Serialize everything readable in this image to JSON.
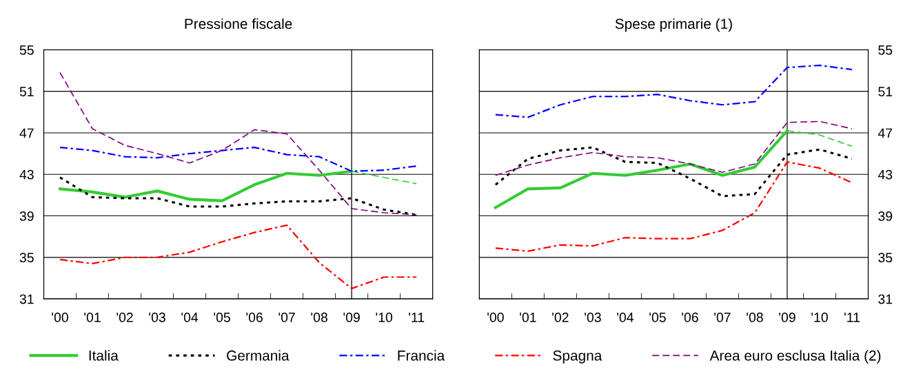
{
  "chart_data": [
    {
      "type": "line",
      "title": "Pressione fiscale",
      "categories": [
        "'00",
        "'01",
        "'02",
        "'03",
        "'04",
        "'05",
        "'06",
        "'07",
        "'08",
        "'09",
        "'10",
        "'11"
      ],
      "ylim": [
        31,
        55
      ],
      "yticks": [
        31,
        35,
        39,
        43,
        47,
        51,
        55
      ],
      "grid": "y",
      "legend": "bottom",
      "ref_lines": [
        {
          "axis": "x",
          "value": "'09",
          "color": "#000000"
        }
      ],
      "series": [
        {
          "name": "Italia",
          "color": "#33cc33",
          "line_style": "solid",
          "values": [
            41.6,
            41.3,
            40.8,
            41.4,
            40.6,
            40.45,
            42.0,
            43.1,
            42.9,
            43.3,
            null,
            null
          ]
        },
        {
          "color": "#33cc33",
          "line_style": "dashed",
          "values": [
            null,
            null,
            null,
            null,
            null,
            null,
            null,
            null,
            null,
            43.3,
            42.7,
            42.1
          ]
        },
        {
          "name": "Germania",
          "color": "#000000",
          "line_style": "dotted",
          "values": [
            42.7,
            40.8,
            40.7,
            40.7,
            39.9,
            39.9,
            40.2,
            40.4,
            40.4,
            40.7,
            39.6,
            39.1
          ]
        },
        {
          "name": "Francia",
          "color": "#0000ff",
          "line_style": "dashdot",
          "values": [
            45.6,
            45.3,
            44.7,
            44.6,
            45.0,
            45.3,
            45.6,
            44.9,
            44.7,
            43.3,
            43.4,
            43.8
          ]
        },
        {
          "name": "Spagna",
          "color": "#ff0000",
          "line_style": "dashdot",
          "values": [
            34.8,
            34.4,
            35.0,
            35.0,
            35.5,
            36.5,
            37.4,
            38.1,
            34.5,
            32.0,
            33.1,
            33.1
          ]
        },
        {
          "name": "Area euro esclusa Italia (2)",
          "color": "#800080",
          "line_style": "dashed",
          "values": [
            52.8,
            47.4,
            45.8,
            45.0,
            44.1,
            45.3,
            47.3,
            46.9,
            43.4,
            39.7,
            39.3,
            39.1
          ]
        }
      ]
    },
    {
      "type": "line",
      "title": "Spese primarie (1)",
      "categories": [
        "'00",
        "'01",
        "'02",
        "'03",
        "'04",
        "'05",
        "'06",
        "'07",
        "'08",
        "'09",
        "'10",
        "'11"
      ],
      "ylim": [
        31,
        55
      ],
      "yticks": [
        31,
        35,
        39,
        43,
        47,
        51,
        55
      ],
      "grid": "y",
      "legend": "bottom",
      "ref_lines": [
        {
          "axis": "x",
          "value": "'09",
          "color": "#000000"
        }
      ],
      "series": [
        {
          "name": "Italia",
          "color": "#33cc33",
          "line_style": "solid",
          "values": [
            39.8,
            41.6,
            41.7,
            43.1,
            42.9,
            43.4,
            44.0,
            42.9,
            43.7,
            47.2,
            null,
            null
          ]
        },
        {
          "color": "#33cc33",
          "line_style": "dashed",
          "values": [
            null,
            null,
            null,
            null,
            null,
            null,
            null,
            null,
            null,
            47.2,
            46.8,
            45.7
          ]
        },
        {
          "name": "Germania",
          "color": "#000000",
          "line_style": "dotted",
          "values": [
            42.0,
            44.5,
            45.3,
            45.6,
            44.2,
            44.1,
            42.6,
            40.9,
            41.1,
            44.9,
            45.4,
            44.5
          ]
        },
        {
          "name": "Francia",
          "color": "#0000ff",
          "line_style": "dashdot",
          "values": [
            48.75,
            48.5,
            49.7,
            50.5,
            50.5,
            50.7,
            50.1,
            49.7,
            50.0,
            53.3,
            53.5,
            53.1
          ]
        },
        {
          "name": "Spagna",
          "color": "#ff0000",
          "line_style": "dashdot",
          "values": [
            35.9,
            35.6,
            36.2,
            36.1,
            36.9,
            36.8,
            36.8,
            37.6,
            39.3,
            44.2,
            43.6,
            42.2
          ]
        },
        {
          "name": "Area euro esclusa Italia (2)",
          "color": "#800080",
          "line_style": "dashed",
          "values": [
            42.9,
            43.9,
            44.6,
            45.1,
            44.7,
            44.6,
            44.0,
            43.2,
            44.0,
            48.0,
            48.1,
            47.4
          ]
        }
      ]
    }
  ]
}
